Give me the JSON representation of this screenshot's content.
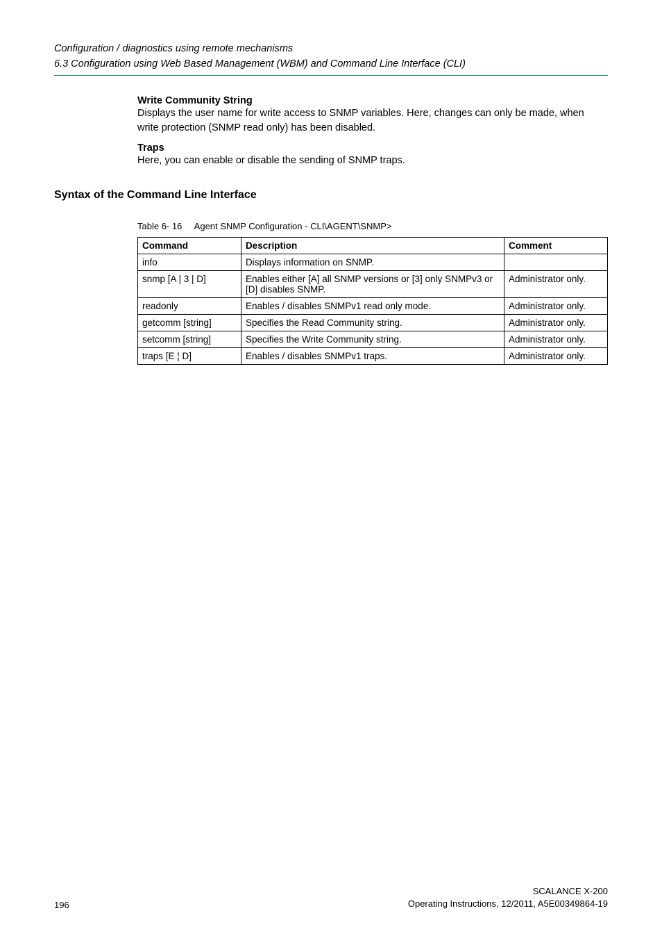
{
  "header": {
    "line1": "Configuration / diagnostics using remote mechanisms",
    "line2": "6.3 Configuration using Web Based Management (WBM) and Command Line Interface (CLI)"
  },
  "body": {
    "wcs_title": "Write Community String",
    "wcs_text": "Displays the user name for write access to SNMP variables. Here, changes can only be made, when write protection (SNMP read only) has been disabled.",
    "traps_title": "Traps",
    "traps_text": "Here, you can enable or disable the sending of SNMP traps."
  },
  "cli_heading": "Syntax of the Command Line Interface",
  "table": {
    "caption_label": "Table 6- 16",
    "caption_text": "Agent SNMP Configuration - CLI\\AGENT\\SNMP>",
    "columns": [
      "Command",
      "Description",
      "Comment"
    ],
    "rows": [
      [
        "info",
        "Displays information on SNMP.",
        ""
      ],
      [
        "snmp [A | 3 | D]",
        "Enables either [A] all SNMP versions or [3] only SNMPv3 or [D] disables SNMP.",
        "Administrator only."
      ],
      [
        "readonly",
        "Enables / disables SNMPv1 read only mode.",
        "Administrator only."
      ],
      [
        "getcomm [string]",
        "Specifies the Read Community string.",
        "Administrator only."
      ],
      [
        "setcomm [string]",
        "Specifies the Write Community string.",
        "Administrator only."
      ],
      [
        "traps [E ¦ D]",
        "Enables / disables SNMPv1 traps.",
        "Administrator only."
      ]
    ]
  },
  "footer": {
    "page": "196",
    "doc_title": "SCALANCE X-200",
    "doc_info": "Operating Instructions, 12/2011, A5E00349864-19"
  }
}
